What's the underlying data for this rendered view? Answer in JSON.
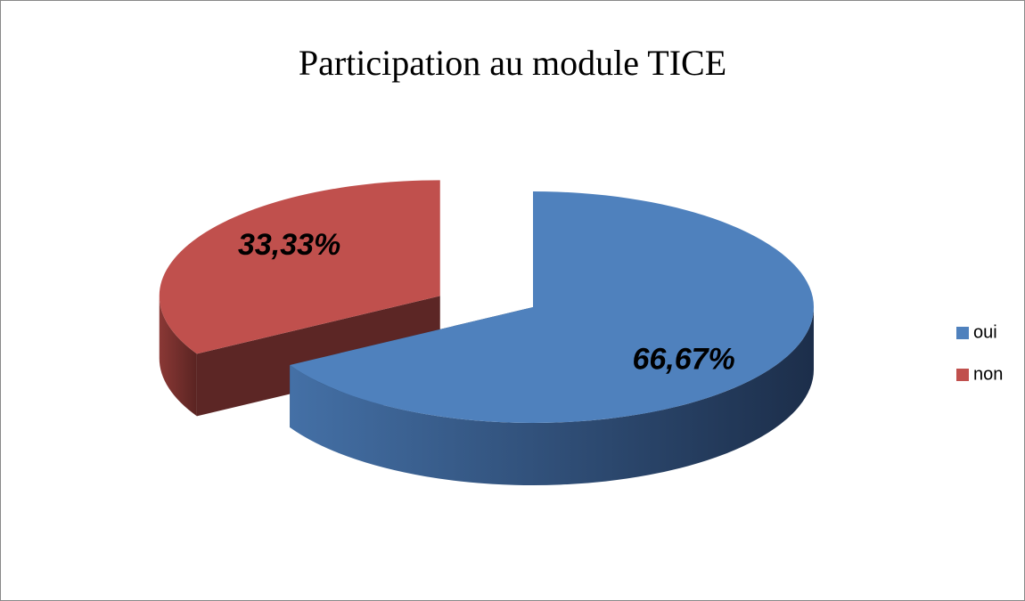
{
  "chart_data": {
    "type": "pie",
    "title": "Participation au module TICE",
    "categories": [
      "oui",
      "non"
    ],
    "values": [
      66.67,
      33.33
    ],
    "value_labels": [
      "66,67%",
      "33,33%"
    ],
    "colors": [
      "#4f81bd",
      "#c0504d"
    ],
    "legend": "right"
  }
}
